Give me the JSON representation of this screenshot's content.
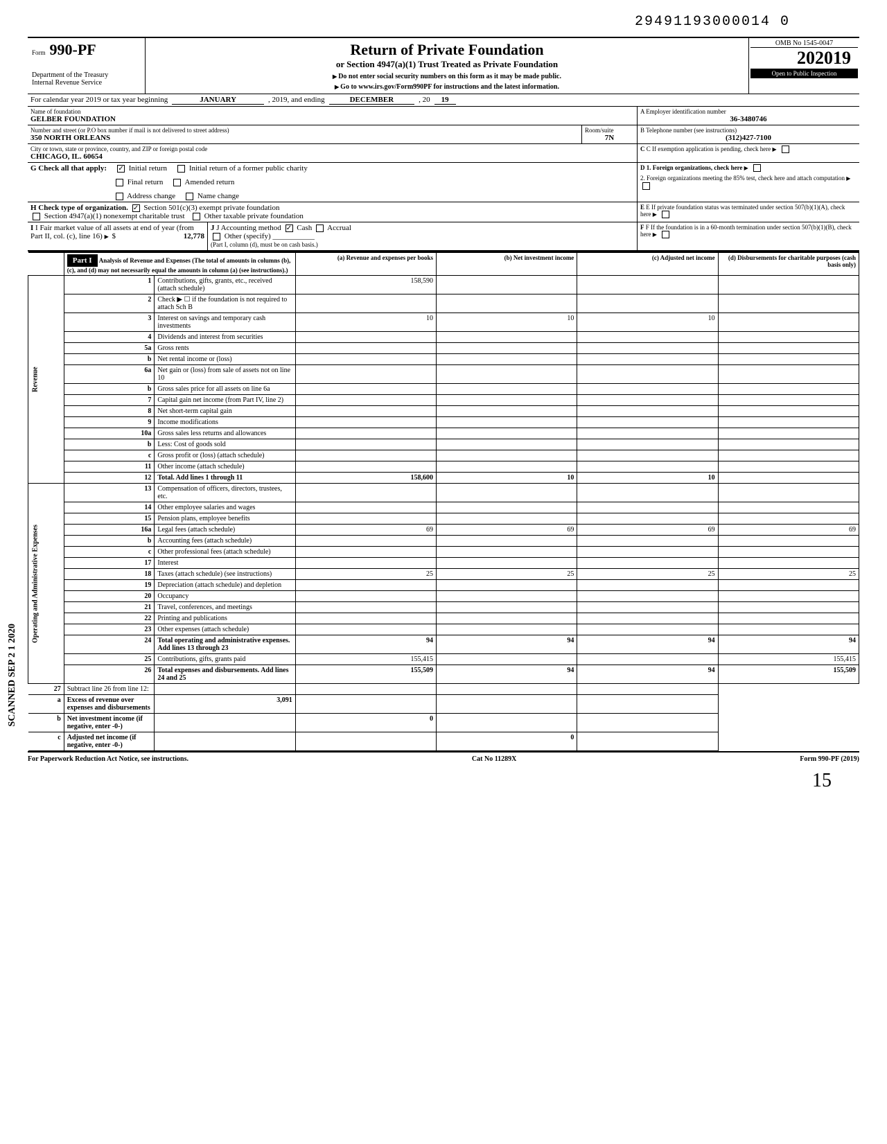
{
  "document_number": "29491193000014 0",
  "form": {
    "prefix": "Form",
    "number": "990-PF",
    "dept": "Department of the Treasury\nInternal Revenue Service",
    "title": "Return of Private Foundation",
    "subtitle1": "or Section 4947(a)(1) Trust Treated as Private Foundation",
    "subtitle2": "Do not enter social security numbers on this form as it may be made public.",
    "subtitle3": "Go to www.irs.gov/Form990PF for instructions and the latest information.",
    "omb": "OMB No 1545-0047",
    "year": "2019",
    "inspection": "Open to Public Inspection"
  },
  "period": {
    "label": "For calendar year 2019 or tax year beginning",
    "begin": "JANUARY",
    "mid": ", 2019, and ending",
    "end_month": "DECEMBER",
    "end_year": "19"
  },
  "name_label": "Name of foundation",
  "foundation_name": "GELBER FOUNDATION",
  "address_label": "Number and street (or P.O box number if mail is not delivered to street address)",
  "address": "350 NORTH ORLEANS",
  "room_label": "Room/suite",
  "room": "7N",
  "city_label": "City or town, state or province, country, and ZIP or foreign postal code",
  "city": "CHICAGO, IL. 60654",
  "ein_label": "A Employer identification number",
  "ein": "36-3480746",
  "phone_label": "B Telephone number (see instructions)",
  "phone": "(312)427-7100",
  "c_label": "C If exemption application is pending, check here",
  "g_label": "G  Check all that apply:",
  "g_options": {
    "initial_return": "Initial return",
    "initial_former": "Initial return of a former public charity",
    "final_return": "Final return",
    "amended": "Amended return",
    "address_change": "Address change",
    "name_change": "Name change"
  },
  "d_label": "D 1. Foreign organizations, check here",
  "d2_label": "2. Foreign organizations meeting the 85% test, check here and attach computation",
  "h_label": "H  Check type of organization.",
  "h_501c3": "Section 501(c)(3) exempt private foundation",
  "h_4947": "Section 4947(a)(1) nonexempt charitable trust",
  "h_other": "Other taxable private foundation",
  "e_label": "E  If private foundation status was terminated under section 507(b)(1)(A), check here",
  "i_label": "I   Fair market value of all assets at end of year  (from Part II, col. (c), line 16)",
  "i_value": "12,778",
  "j_label": "J  Accounting method",
  "j_cash": "Cash",
  "j_accrual": "Accrual",
  "j_other": "Other (specify)",
  "j_note": "(Part I, column (d), must be on cash basis.)",
  "f_label": "F  If the foundation is in a 60-month termination under section 507(b)(1)(B), check here",
  "part1": {
    "header": "Part I",
    "title": "Analysis of Revenue and Expenses",
    "title_note": "(The total of amounts in columns (b), (c), and (d) may not necessarily equal the amounts in column (a) (see instructions).)",
    "col_a": "(a) Revenue and expenses per books",
    "col_b": "(b) Net investment income",
    "col_c": "(c) Adjusted net income",
    "col_d": "(d) Disbursements for charitable purposes (cash basis only)"
  },
  "revenue_label": "Revenue",
  "expenses_label": "Operating and Administrative Expenses",
  "lines": [
    {
      "n": "1",
      "desc": "Contributions, gifts, grants, etc., received (attach schedule)",
      "a": "158,590",
      "b": "",
      "c": "",
      "d": ""
    },
    {
      "n": "2",
      "desc": "Check ▶ ☐ if the foundation is not required to attach Sch B",
      "a": "",
      "b": "",
      "c": "",
      "d": ""
    },
    {
      "n": "3",
      "desc": "Interest on savings and temporary cash investments",
      "a": "10",
      "b": "10",
      "c": "10",
      "d": ""
    },
    {
      "n": "4",
      "desc": "Dividends and interest from securities",
      "a": "",
      "b": "",
      "c": "",
      "d": ""
    },
    {
      "n": "5a",
      "desc": "Gross rents",
      "a": "",
      "b": "",
      "c": "",
      "d": ""
    },
    {
      "n": "b",
      "desc": "Net rental income or (loss)",
      "a": "",
      "b": "",
      "c": "",
      "d": ""
    },
    {
      "n": "6a",
      "desc": "Net gain or (loss) from sale of assets not on line 10",
      "a": "",
      "b": "",
      "c": "",
      "d": ""
    },
    {
      "n": "b",
      "desc": "Gross sales price for all assets on line 6a",
      "a": "",
      "b": "",
      "c": "",
      "d": ""
    },
    {
      "n": "7",
      "desc": "Capital gain net income (from Part IV, line 2)",
      "a": "",
      "b": "",
      "c": "",
      "d": ""
    },
    {
      "n": "8",
      "desc": "Net short-term capital gain",
      "a": "",
      "b": "",
      "c": "",
      "d": ""
    },
    {
      "n": "9",
      "desc": "Income modifications",
      "a": "",
      "b": "",
      "c": "",
      "d": ""
    },
    {
      "n": "10a",
      "desc": "Gross sales less returns and allowances",
      "a": "",
      "b": "",
      "c": "",
      "d": ""
    },
    {
      "n": "b",
      "desc": "Less: Cost of goods sold",
      "a": "",
      "b": "",
      "c": "",
      "d": ""
    },
    {
      "n": "c",
      "desc": "Gross profit or (loss) (attach schedule)",
      "a": "",
      "b": "",
      "c": "",
      "d": ""
    },
    {
      "n": "11",
      "desc": "Other income (attach schedule)",
      "a": "",
      "b": "",
      "c": "",
      "d": ""
    },
    {
      "n": "12",
      "desc": "Total. Add lines 1 through 11",
      "a": "158,600",
      "b": "10",
      "c": "10",
      "d": "",
      "bold": true
    }
  ],
  "exp_lines": [
    {
      "n": "13",
      "desc": "Compensation of officers, directors, trustees, etc.",
      "a": "",
      "b": "",
      "c": "",
      "d": ""
    },
    {
      "n": "14",
      "desc": "Other employee salaries and wages",
      "a": "",
      "b": "",
      "c": "",
      "d": ""
    },
    {
      "n": "15",
      "desc": "Pension plans, employee benefits",
      "a": "",
      "b": "",
      "c": "",
      "d": ""
    },
    {
      "n": "16a",
      "desc": "Legal fees (attach schedule)",
      "a": "69",
      "b": "69",
      "c": "69",
      "d": "69"
    },
    {
      "n": "b",
      "desc": "Accounting fees (attach schedule)",
      "a": "",
      "b": "",
      "c": "",
      "d": ""
    },
    {
      "n": "c",
      "desc": "Other professional fees (attach schedule)",
      "a": "",
      "b": "",
      "c": "",
      "d": ""
    },
    {
      "n": "17",
      "desc": "Interest",
      "a": "",
      "b": "",
      "c": "",
      "d": ""
    },
    {
      "n": "18",
      "desc": "Taxes (attach schedule) (see instructions)",
      "a": "25",
      "b": "25",
      "c": "25",
      "d": "25"
    },
    {
      "n": "19",
      "desc": "Depreciation (attach schedule) and depletion",
      "a": "",
      "b": "",
      "c": "",
      "d": ""
    },
    {
      "n": "20",
      "desc": "Occupancy",
      "a": "",
      "b": "",
      "c": "",
      "d": ""
    },
    {
      "n": "21",
      "desc": "Travel, conferences, and meetings",
      "a": "",
      "b": "",
      "c": "",
      "d": ""
    },
    {
      "n": "22",
      "desc": "Printing and publications",
      "a": "",
      "b": "",
      "c": "",
      "d": ""
    },
    {
      "n": "23",
      "desc": "Other expenses (attach schedule)",
      "a": "",
      "b": "",
      "c": "",
      "d": ""
    },
    {
      "n": "24",
      "desc": "Total operating and administrative expenses. Add lines 13 through 23",
      "a": "94",
      "b": "94",
      "c": "94",
      "d": "94",
      "bold": true
    },
    {
      "n": "25",
      "desc": "Contributions, gifts, grants paid",
      "a": "155,415",
      "b": "",
      "c": "",
      "d": "155,415"
    },
    {
      "n": "26",
      "desc": "Total expenses and disbursements. Add lines 24 and 25",
      "a": "155,509",
      "b": "94",
      "c": "94",
      "d": "155,509",
      "bold": true
    }
  ],
  "sub_lines": [
    {
      "n": "27",
      "desc": "Subtract line 26 from line 12:",
      "a": "",
      "b": "",
      "c": "",
      "d": ""
    },
    {
      "n": "a",
      "desc": "Excess of revenue over expenses and disbursements",
      "a": "3,091",
      "b": "",
      "c": "",
      "d": "",
      "bold": true
    },
    {
      "n": "b",
      "desc": "Net investment income (if negative, enter -0-)",
      "a": "",
      "b": "0",
      "c": "",
      "d": "",
      "bold": true
    },
    {
      "n": "c",
      "desc": "Adjusted net income (if negative, enter -0-)",
      "a": "",
      "b": "",
      "c": "0",
      "d": "",
      "bold": true
    }
  ],
  "footer": {
    "left": "For Paperwork Reduction Act Notice, see instructions.",
    "center": "Cat No 11289X",
    "right": "Form 990-PF (2019)"
  },
  "scanned": "SCANNED SEP 2 1 2020"
}
